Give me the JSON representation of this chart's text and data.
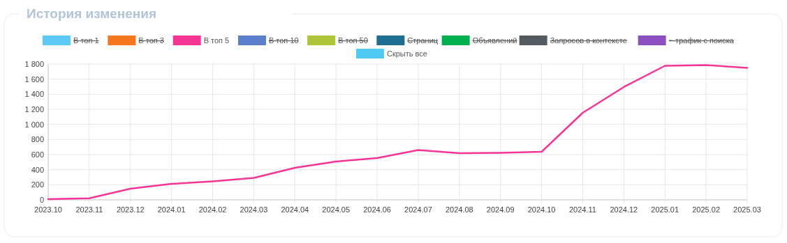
{
  "chart_data": {
    "type": "line",
    "title": "История изменения",
    "categories": [
      "2023.10",
      "2023.11",
      "2023.12",
      "2024.01",
      "2024.02",
      "2024.03",
      "2024.04",
      "2024.05",
      "2024.06",
      "2024.07",
      "2024.08",
      "2024.09",
      "2024.10",
      "2024.11",
      "2024.12",
      "2025.01",
      "2025.02",
      "2025.03"
    ],
    "series": [
      {
        "name": "В топ 1",
        "color": "#5bc8f5",
        "values": [
          null,
          null,
          null,
          null,
          null,
          null,
          null,
          null,
          null,
          null,
          null,
          null,
          null,
          null,
          null,
          null,
          null,
          null
        ]
      },
      {
        "name": "В топ 3",
        "color": "#f5761f",
        "values": [
          null,
          null,
          null,
          null,
          null,
          null,
          null,
          null,
          null,
          null,
          null,
          null,
          null,
          null,
          null,
          null,
          null,
          null
        ]
      },
      {
        "name": "В топ 5",
        "color": "#f53594",
        "values": [
          10,
          20,
          148,
          212,
          245,
          290,
          425,
          508,
          554,
          660,
          618,
          623,
          637,
          1154,
          1496,
          1777,
          1786,
          1750
        ]
      },
      {
        "name": "В топ 10",
        "color": "#5b7fcc",
        "values": [
          null,
          null,
          null,
          null,
          null,
          null,
          null,
          null,
          null,
          null,
          null,
          null,
          null,
          null,
          null,
          null,
          null,
          null
        ]
      },
      {
        "name": "В топ 50",
        "color": "#aec43a",
        "values": [
          null,
          null,
          null,
          null,
          null,
          null,
          null,
          null,
          null,
          null,
          null,
          null,
          null,
          null,
          null,
          null,
          null,
          null
        ]
      },
      {
        "name": "Страниц",
        "color": "#1d6e91",
        "values": [
          null,
          null,
          null,
          null,
          null,
          null,
          null,
          null,
          null,
          null,
          null,
          null,
          null,
          null,
          null,
          null,
          null,
          null
        ]
      },
      {
        "name": "Объявлений",
        "color": "#00b050",
        "values": [
          null,
          null,
          null,
          null,
          null,
          null,
          null,
          null,
          null,
          null,
          null,
          null,
          null,
          null,
          null,
          null,
          null,
          null
        ]
      },
      {
        "name": "Запросов в контексте",
        "color": "#555a5e",
        "values": [
          null,
          null,
          null,
          null,
          null,
          null,
          null,
          null,
          null,
          null,
          null,
          null,
          null,
          null,
          null,
          null,
          null,
          null
        ]
      },
      {
        "name": "~ трафик с поиска",
        "color": "#8b4fbf",
        "values": [
          null,
          null,
          null,
          null,
          null,
          null,
          null,
          null,
          null,
          null,
          null,
          null,
          null,
          null,
          null,
          null,
          null,
          null
        ]
      }
    ],
    "annotations": [
      "Скрыть все"
    ],
    "ylim": [
      0,
      1800
    ],
    "yticks": [
      0,
      200,
      400,
      600,
      800,
      {
        "value": 1000,
        "label": "1 000"
      },
      {
        "value": 1200,
        "label": "1 200"
      },
      {
        "value": 1400,
        "label": "1 400"
      },
      {
        "value": 1600,
        "label": "1 600"
      },
      {
        "value": 1800,
        "label": "1 800"
      }
    ],
    "grid": true,
    "legend": "top",
    "marker": "none",
    "line_style": "solid"
  }
}
